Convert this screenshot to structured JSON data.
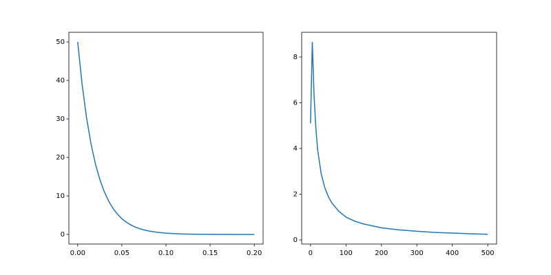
{
  "chart_data": [
    {
      "type": "line",
      "xlim": [
        -0.01,
        0.21
      ],
      "ylim": [
        -2.5,
        52.5
      ],
      "xticks": [
        {
          "value": 0,
          "label": "0.00"
        },
        0.05,
        {
          "value": 0.1,
          "label": "0.10"
        },
        0.15,
        {
          "value": 0.2,
          "label": "0.20"
        }
      ],
      "yticks": [
        0,
        10,
        20,
        30,
        40,
        50
      ],
      "series": [
        {
          "color": "#1f77b4",
          "x": [
            0,
            0.005,
            0.01,
            0.015,
            0.02,
            0.025,
            0.03,
            0.035,
            0.04,
            0.045,
            0.05,
            0.055,
            0.06,
            0.065,
            0.07,
            0.075,
            0.08,
            0.09,
            0.1,
            0.11,
            0.12,
            0.13,
            0.14,
            0.16,
            0.18,
            0.2
          ],
          "values": [
            50,
            38.94,
            30.33,
            23.62,
            18.39,
            14.33,
            11.16,
            8.69,
            6.77,
            5.27,
            4.1,
            3.2,
            2.49,
            1.94,
            1.51,
            1.18,
            0.92,
            0.56,
            0.34,
            0.2,
            0.12,
            0.07,
            0.05,
            0.02,
            0.01,
            0
          ]
        }
      ]
    },
    {
      "type": "line",
      "xlim": [
        -25,
        525
      ],
      "ylim": [
        -0.18,
        9.08
      ],
      "xticks": [
        0,
        100,
        200,
        300,
        400,
        500
      ],
      "yticks": [
        0,
        2,
        4,
        6,
        8
      ],
      "series": [
        {
          "color": "#1f77b4",
          "x": [
            0,
            5,
            10,
            15,
            20,
            30,
            40,
            50,
            60,
            80,
            100,
            125,
            150,
            200,
            250,
            300,
            350,
            400,
            450,
            500
          ],
          "values": [
            5.1,
            8.66,
            6.3,
            4.9,
            3.95,
            2.9,
            2.3,
            1.9,
            1.62,
            1.25,
            1.0,
            0.82,
            0.7,
            0.53,
            0.44,
            0.38,
            0.33,
            0.3,
            0.27,
            0.25
          ]
        }
      ]
    }
  ]
}
